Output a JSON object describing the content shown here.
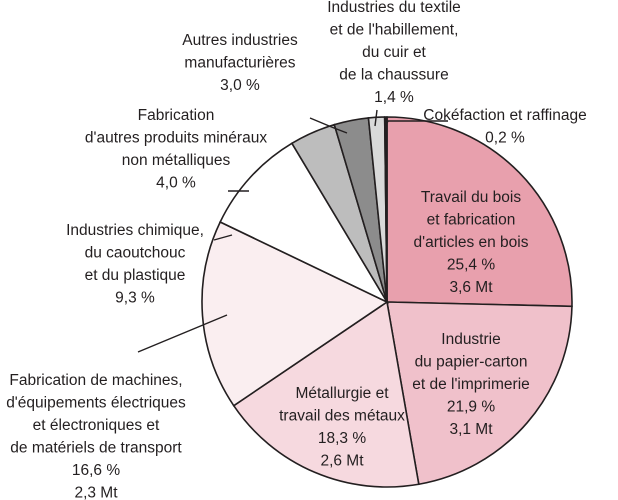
{
  "chart_data": {
    "type": "pie",
    "start_angle_deg": 90,
    "direction": "clockwise",
    "slices": [
      {
        "lines": [
          "Travail du bois",
          "et fabrication",
          "d'articles en bois",
          "25,4  %",
          "3,6 Mt"
        ],
        "percent": 25.4,
        "amount_mt": 3.6,
        "color": "#e8a0ad",
        "label_pos": "inside"
      },
      {
        "lines": [
          "Industrie",
          "du papier-carton",
          "et de l'imprimerie",
          "21,9 %",
          "3,1 Mt"
        ],
        "percent": 21.9,
        "amount_mt": 3.1,
        "color": "#f0c1cb",
        "label_pos": "inside"
      },
      {
        "lines": [
          "Métallurgie et",
          "travail des métaux",
          "18,3 %",
          "2,6 Mt"
        ],
        "percent": 18.3,
        "amount_mt": 2.6,
        "color": "#f6d9df",
        "label_pos": "inside"
      },
      {
        "lines": [
          "Fabrication de machines,",
          "d'équipements électriques",
          "et électroniques  et",
          "de matériels de transport",
          "16,6 %",
          "2,3 Mt"
        ],
        "percent": 16.6,
        "amount_mt": 2.3,
        "color": "#faeef0",
        "label_pos": "outside"
      },
      {
        "lines": [
          "Industries chimique,",
          "du caoutchouc",
          "et du plastique",
          "9,3 %"
        ],
        "percent": 9.3,
        "color": "#ffffff",
        "label_pos": "outside"
      },
      {
        "lines": [
          "Fabrication",
          "d'autres produits minéraux",
          "non métalliques",
          "4,0 %"
        ],
        "percent": 4.0,
        "color": "#bdbdbd",
        "label_pos": "outside"
      },
      {
        "lines": [
          "Autres industries",
          "manufacturières",
          "3,0 %"
        ],
        "percent": 3.0,
        "color": "#8c8c8c",
        "label_pos": "outside"
      },
      {
        "lines": [
          "Industries du textile",
          "et de l'habillement,",
          "du cuir et",
          "de la chaussure",
          "1,4 %"
        ],
        "percent": 1.4,
        "color": "#d9d9d9",
        "label_pos": "outside"
      },
      {
        "lines": [
          "Cokéfaction et raffinage",
          "0,2 %"
        ],
        "percent": 0.2,
        "color": "#231f20",
        "label_pos": "outside"
      }
    ]
  }
}
